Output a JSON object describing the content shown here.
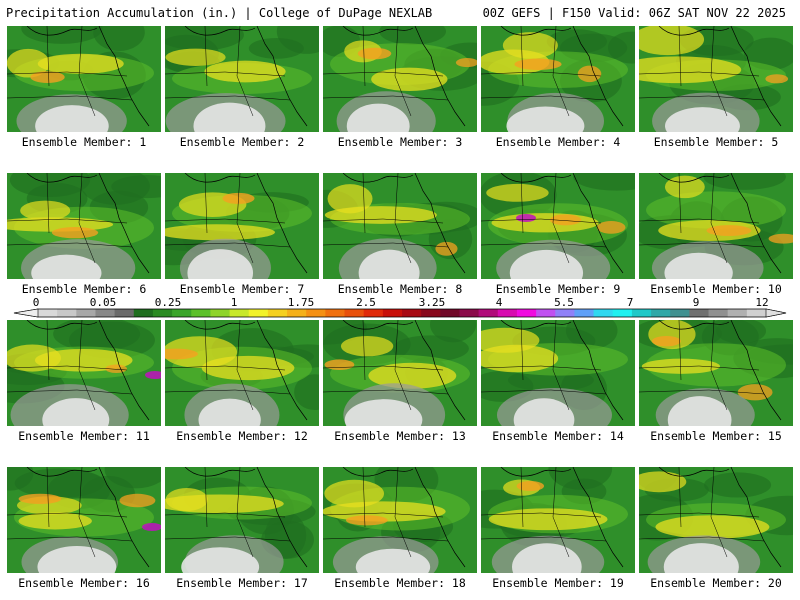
{
  "header": {
    "title_left": "Precipitation Accumulation (in.) | College of DuPage NEXLAB",
    "title_right": "00Z GEFS | F150 Valid: 06Z SAT NOV 22 2025"
  },
  "label_prefix": "Ensemble Member: ",
  "members": [
    1,
    2,
    3,
    4,
    5,
    6,
    7,
    8,
    9,
    10,
    11,
    12,
    13,
    14,
    15,
    16,
    17,
    18,
    19,
    20
  ],
  "member_labels": [
    "Ensemble Member: 1",
    "Ensemble Member: 2",
    "Ensemble Member: 3",
    "Ensemble Member: 4",
    "Ensemble Member: 5",
    "Ensemble Member: 6",
    "Ensemble Member: 7",
    "Ensemble Member: 8",
    "Ensemble Member: 9",
    "Ensemble Member: 10",
    "Ensemble Member: 11",
    "Ensemble Member: 12",
    "Ensemble Member: 13",
    "Ensemble Member: 14",
    "Ensemble Member: 15",
    "Ensemble Member: 16",
    "Ensemble Member: 17",
    "Ensemble Member: 18",
    "Ensemble Member: 19",
    "Ensemble Member: 20"
  ],
  "colorbar": {
    "labels": [
      "0",
      "0.05",
      "0.25",
      "1",
      "1.75",
      "2.5",
      "3.25",
      "4",
      "5.5",
      "7",
      "9",
      "12"
    ],
    "colors": [
      "#d9d9d9",
      "#c8c8c8",
      "#a8a8a8",
      "#888888",
      "#6a6a6a",
      "#1f6e1f",
      "#2a8a22",
      "#3aa52a",
      "#5cc02a",
      "#8fd42a",
      "#c8e82a",
      "#f2f22a",
      "#f5d020",
      "#f5b01a",
      "#f59014",
      "#f0700f",
      "#e8500c",
      "#e02a0a",
      "#c8100a",
      "#a80a14",
      "#88081c",
      "#700828",
      "#8a0a4a",
      "#b00a7a",
      "#d80ab0",
      "#f00ae0",
      "#c050f0",
      "#9080f8",
      "#60a0f8",
      "#30d8f0",
      "#20f0f0",
      "#20c8c8",
      "#30a8a8",
      "#409090",
      "#707070",
      "#909090",
      "#b0b0b0",
      "#d0d0d0"
    ]
  },
  "colors": {
    "base_green": "#2f8f2a",
    "dry_white": "#e6e6e6",
    "moderate_yellow": "#e8e020",
    "heavy_orange": "#f5a020",
    "extreme_magenta": "#c010c0"
  }
}
